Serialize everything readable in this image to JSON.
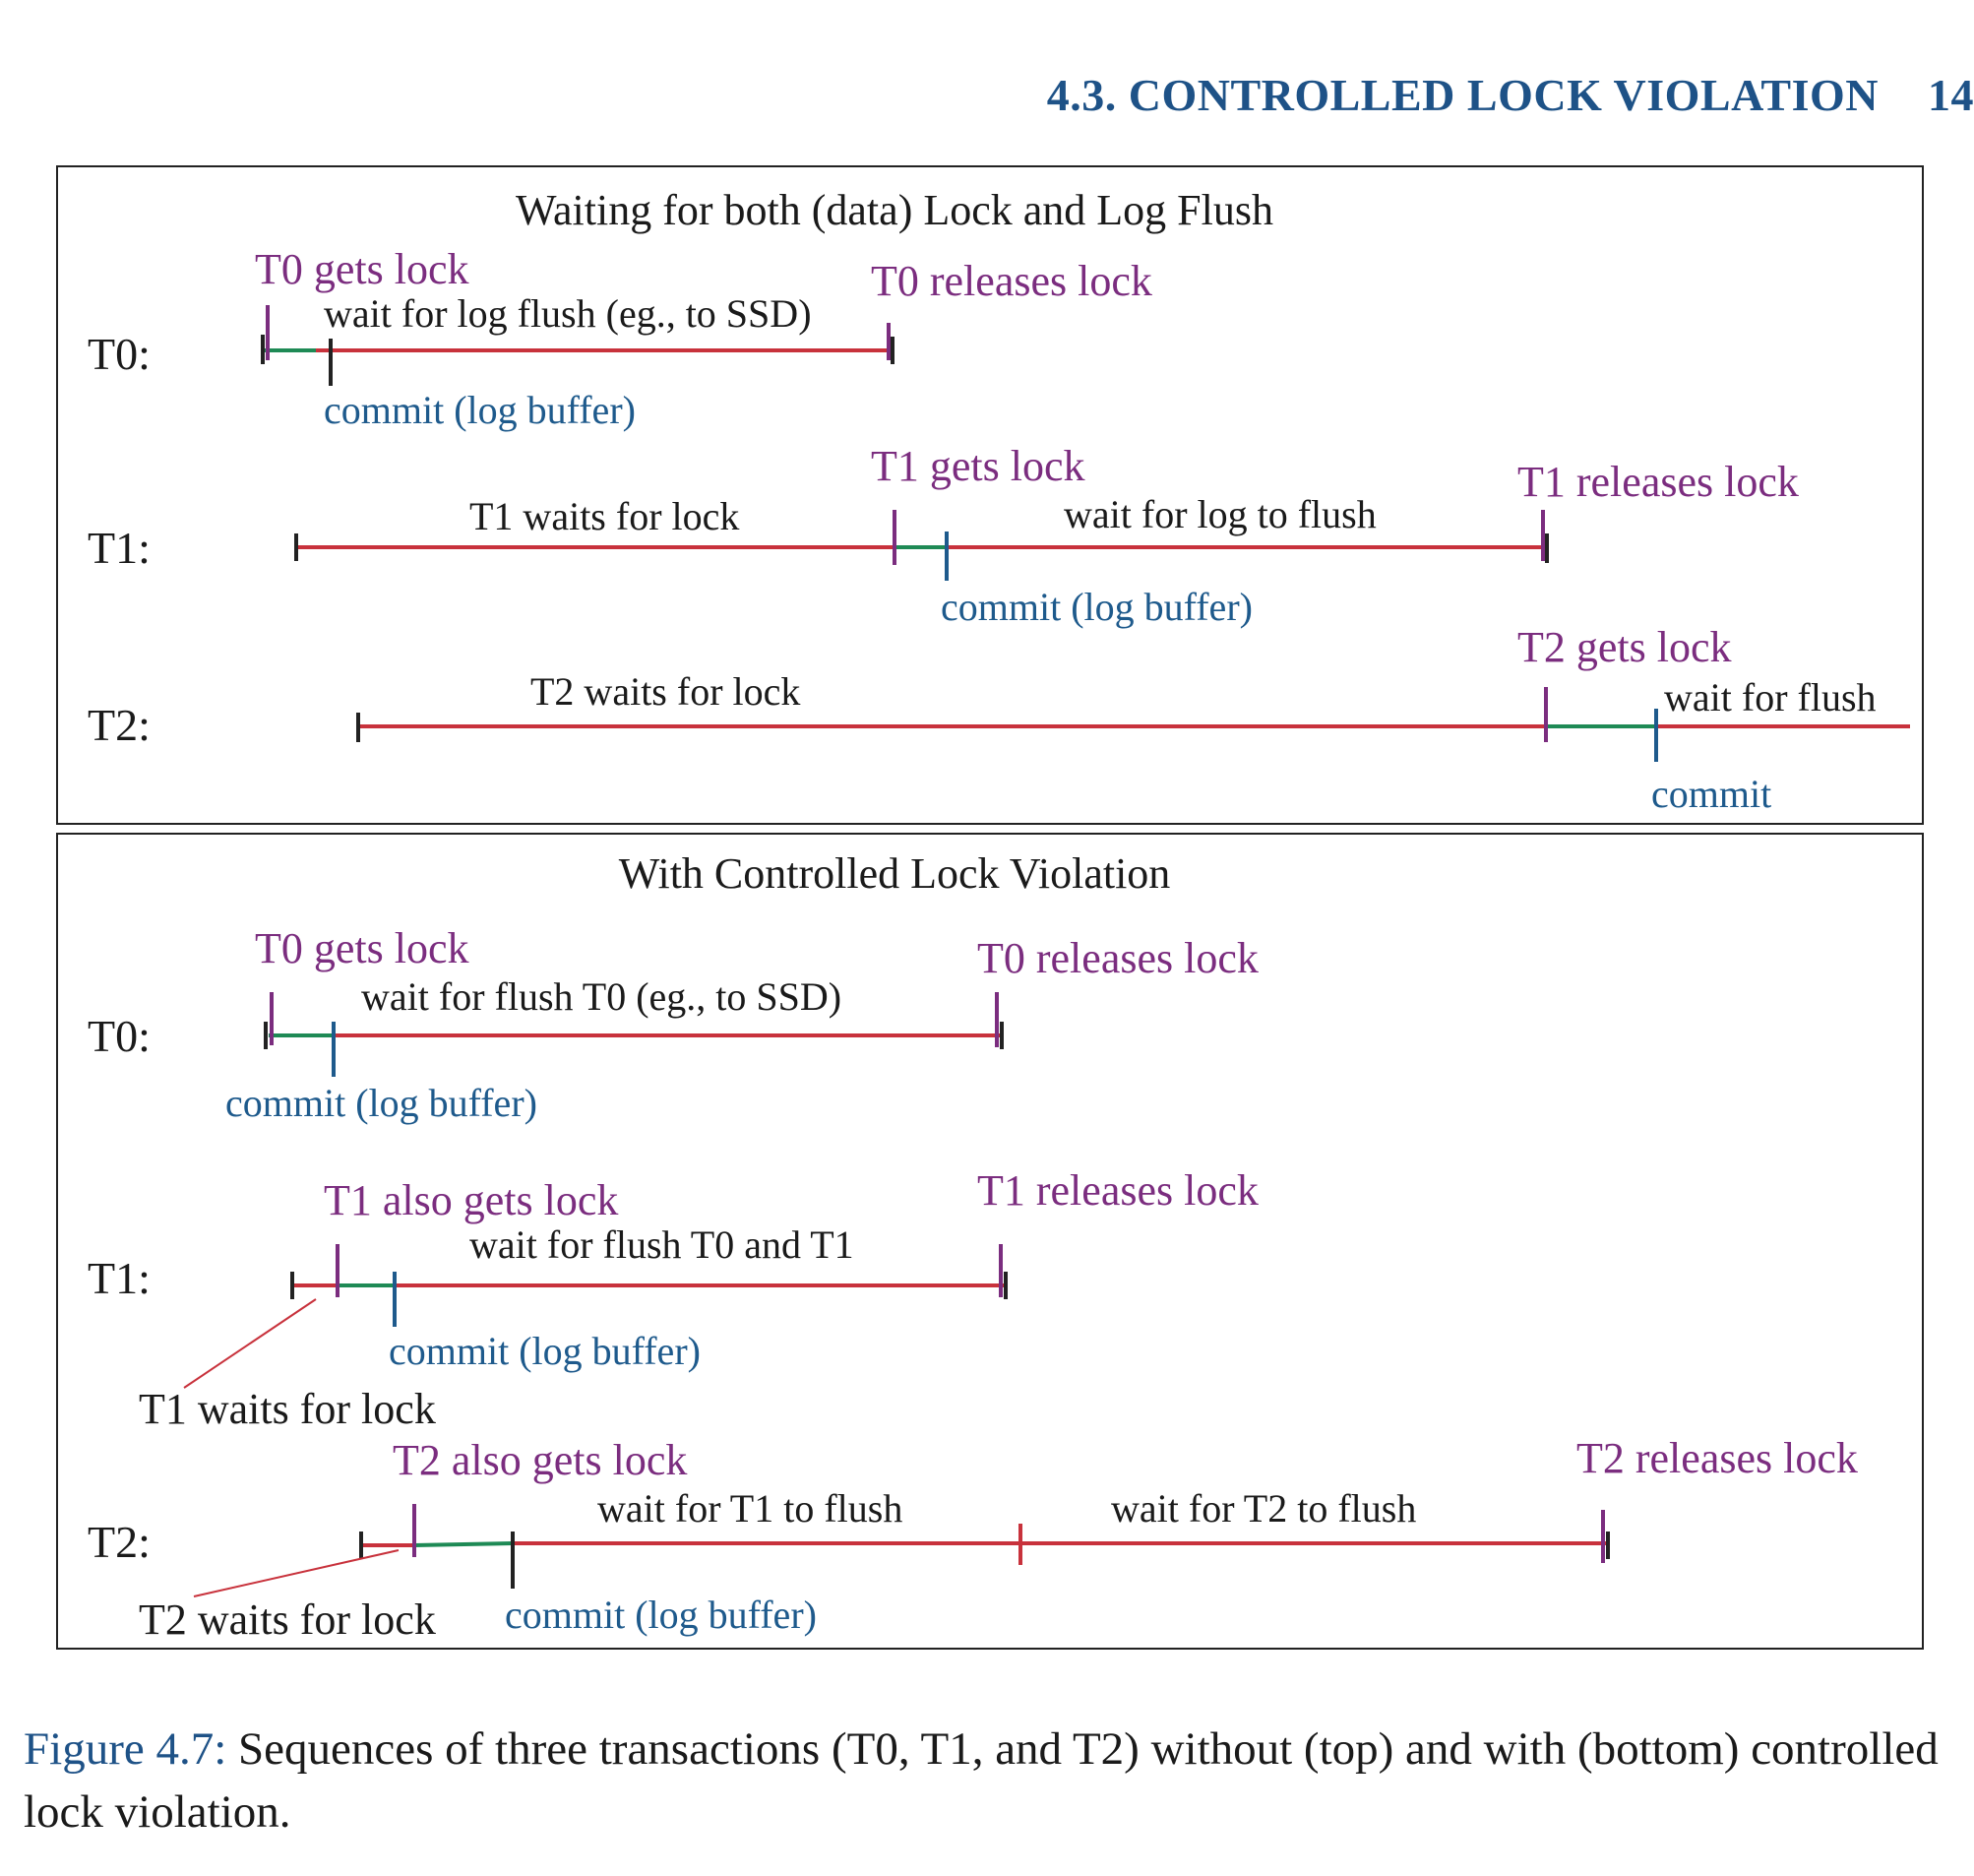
{
  "header": {
    "section": "4.3. CONTROLLED LOCK VIOLATION",
    "page": "14"
  },
  "top": {
    "title": "Waiting for both (data) Lock and Log Flush",
    "rows": [
      "T0:",
      "T1:",
      "T2:"
    ],
    "t0": {
      "gets": "T0 gets lock",
      "releases": "T0 releases lock",
      "wait": "wait for log flush (eg., to SSD)",
      "commit": "commit (log buffer)"
    },
    "t1": {
      "waits": "T1 waits for lock",
      "gets": "T1 gets lock",
      "wait": "wait for log to flush",
      "releases": "T1 releases lock",
      "commit": "commit (log buffer)"
    },
    "t2": {
      "waits": "T2 waits for lock",
      "gets": "T2 gets lock",
      "wait": "wait for  flush",
      "commit": "commit"
    }
  },
  "bottom": {
    "title": "With Controlled Lock Violation",
    "rows": [
      "T0:",
      "T1:",
      "T2:"
    ],
    "t0": {
      "gets": "T0 gets lock",
      "wait": "wait for flush T0 (eg., to SSD)",
      "releases": "T0 releases lock",
      "commit": "commit (log buffer)"
    },
    "t1": {
      "gets": "T1 also gets lock",
      "wait": "wait for flush T0 and T1",
      "releases": "T1 releases lock",
      "commit": "commit (log buffer)",
      "waits": "T1 waits for lock"
    },
    "t2": {
      "gets": "T2 also gets lock",
      "wait1": "wait for T1 to flush",
      "wait2": "wait for T2 to flush",
      "releases": "T2 releases lock",
      "commit": "commit (log buffer)",
      "waits": "T2 waits for lock"
    }
  },
  "caption": {
    "label": "Figure 4.7:",
    "text": "Sequences of three transactions (T0, T1, and T2) without (top) and with (bottom) controlled lock violation."
  },
  "colors": {
    "wait_line": "#c8323c",
    "hold_line": "#1e8a55",
    "purple": "#7b2d7f",
    "blue": "#1e5a8c",
    "black": "#222222"
  }
}
